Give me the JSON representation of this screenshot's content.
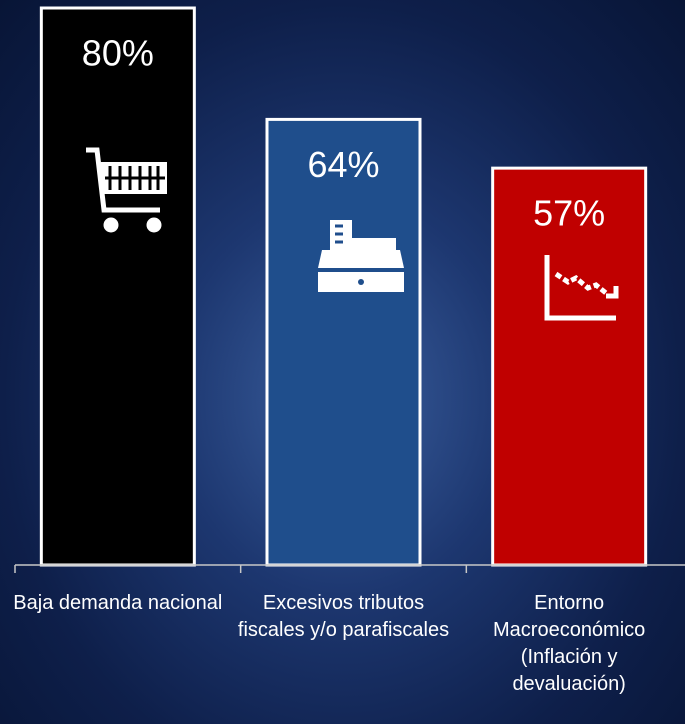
{
  "chart_data": {
    "type": "bar",
    "categories": [
      "Baja demanda nacional",
      "Excesivos tributos fiscales y/o parafiscales",
      "Entorno Macroeconómico (Inflación y devaluación)"
    ],
    "values": [
      80,
      64,
      57
    ],
    "value_labels": [
      "80%",
      "64%",
      "57%"
    ],
    "colors": [
      "#000000",
      "#1f4e8c",
      "#c00000"
    ]
  }
}
